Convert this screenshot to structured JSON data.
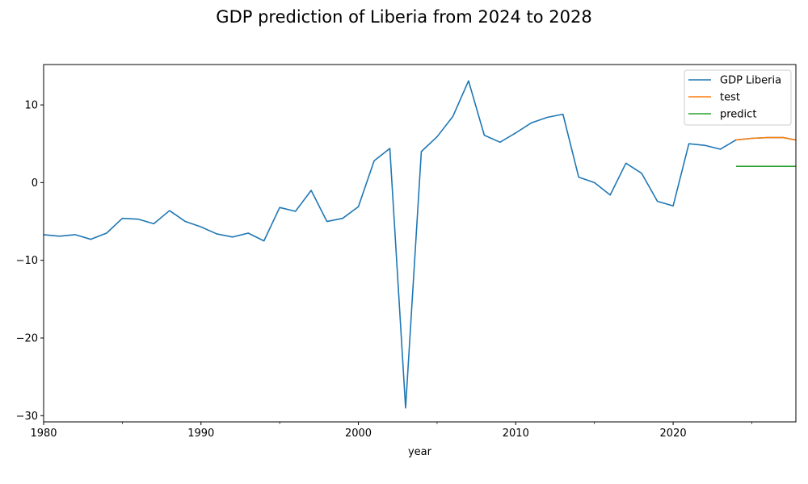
{
  "chart_data": {
    "type": "line",
    "title": "GDP prediction of Liberia from 2024 to 2028",
    "xlabel": "year",
    "ylabel": "",
    "xlim": [
      1980,
      2027.8
    ],
    "ylim": [
      -30.8,
      15.2
    ],
    "xticks": [
      1980,
      1990,
      2000,
      2010,
      2020
    ],
    "xticks_minor": [
      1985,
      1995,
      2005,
      2015,
      2025
    ],
    "yticks": [
      10,
      0,
      -10,
      -20,
      -30
    ],
    "grid": false,
    "legend_position": "top-right",
    "series": [
      {
        "name": "GDP Liberia",
        "color": "#1f77b4",
        "x": [
          1980,
          1981,
          1982,
          1983,
          1984,
          1985,
          1986,
          1987,
          1988,
          1989,
          1990,
          1991,
          1992,
          1993,
          1994,
          1995,
          1996,
          1997,
          1998,
          1999,
          2000,
          2001,
          2002,
          2003,
          2004,
          2005,
          2006,
          2007,
          2008,
          2009,
          2010,
          2011,
          2012,
          2013,
          2014,
          2015,
          2016,
          2017,
          2018,
          2019,
          2020,
          2021,
          2022,
          2023,
          2024,
          2025,
          2026,
          2027,
          2028
        ],
        "values": [
          -6.7,
          -6.9,
          -6.7,
          -7.3,
          -6.5,
          -4.6,
          -4.7,
          -5.3,
          -3.6,
          -5.0,
          -5.7,
          -6.6,
          -7.0,
          -6.5,
          -7.5,
          -3.2,
          -3.7,
          -1.0,
          -5.0,
          -4.6,
          -3.1,
          2.8,
          4.4,
          -29.0,
          4.0,
          5.9,
          8.5,
          13.1,
          6.1,
          5.2,
          6.4,
          7.7,
          8.4,
          8.8,
          0.7,
          0.0,
          -1.6,
          2.5,
          1.2,
          -2.4,
          -3.0,
          5.0,
          4.8,
          4.3,
          5.5,
          5.7,
          5.8,
          5.8,
          5.4
        ]
      },
      {
        "name": "test",
        "color": "#ff7f0e",
        "x": [
          2024,
          2025,
          2026,
          2027,
          2028
        ],
        "values": [
          5.5,
          5.7,
          5.8,
          5.8,
          5.4
        ]
      },
      {
        "name": "predict",
        "color": "#2ca02c",
        "x": [
          2024,
          2025,
          2026,
          2027,
          2028
        ],
        "values": [
          2.1,
          2.1,
          2.1,
          2.1,
          2.1
        ]
      }
    ]
  }
}
